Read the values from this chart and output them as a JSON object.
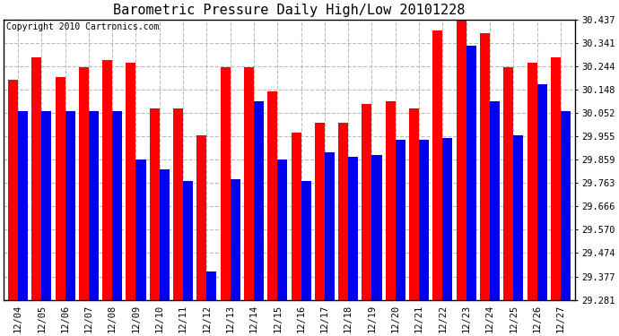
{
  "title": "Barometric Pressure Daily High/Low 20101228",
  "copyright": "Copyright 2010 Cartronics.com",
  "dates": [
    "12/04",
    "12/05",
    "12/06",
    "12/07",
    "12/08",
    "12/09",
    "12/10",
    "12/11",
    "12/12",
    "12/13",
    "12/14",
    "12/15",
    "12/16",
    "12/17",
    "12/18",
    "12/19",
    "12/20",
    "12/21",
    "12/22",
    "12/23",
    "12/24",
    "12/25",
    "12/26",
    "12/27"
  ],
  "highs": [
    30.19,
    30.28,
    30.2,
    30.24,
    30.27,
    30.26,
    30.07,
    30.07,
    29.96,
    30.24,
    30.24,
    30.14,
    29.97,
    30.01,
    30.01,
    30.09,
    30.1,
    30.07,
    30.39,
    30.45,
    30.38,
    30.24,
    30.26,
    30.28
  ],
  "lows": [
    30.06,
    30.06,
    30.06,
    30.06,
    30.06,
    29.86,
    29.82,
    29.77,
    29.4,
    29.78,
    30.1,
    29.86,
    29.77,
    29.89,
    29.87,
    29.88,
    29.94,
    29.94,
    29.95,
    30.33,
    30.1,
    29.96,
    30.17,
    30.06
  ],
  "ymin": 29.281,
  "ymax": 30.437,
  "yticks": [
    29.281,
    29.377,
    29.474,
    29.57,
    29.666,
    29.763,
    29.859,
    29.955,
    30.052,
    30.148,
    30.244,
    30.341,
    30.437
  ],
  "high_color": "#FF0000",
  "low_color": "#0000EE",
  "bg_color": "#FFFFFF",
  "grid_color": "#BBBBBB",
  "title_fontsize": 11,
  "copyright_fontsize": 7
}
